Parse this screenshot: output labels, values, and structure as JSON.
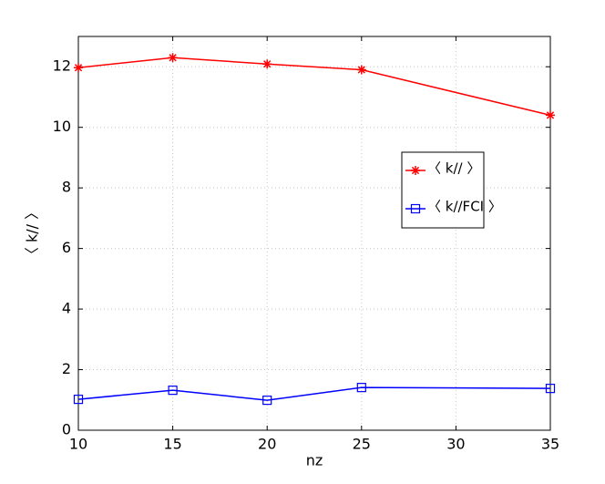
{
  "chart_data": {
    "type": "line",
    "x_label": "nz",
    "y_label": "〈 k// 〉",
    "x": [
      10,
      15,
      20,
      25,
      35
    ],
    "series": [
      {
        "name": "〈 k// 〉",
        "color": "#ff0000",
        "marker": "asterisk",
        "values": [
          11.97,
          12.3,
          12.09,
          11.9,
          10.4
        ]
      },
      {
        "name": "〈 k//FCI 〉",
        "color": "#0000ff",
        "marker": "square",
        "values": [
          1.02,
          1.32,
          0.99,
          1.41,
          1.38
        ]
      }
    ],
    "xlim": [
      10,
      35
    ],
    "xticks": [
      10,
      15,
      20,
      25,
      30,
      35
    ],
    "ylim": [
      0,
      13
    ],
    "yticks": [
      0,
      2,
      4,
      6,
      8,
      10,
      12
    ],
    "grid": true,
    "legend": "right"
  }
}
